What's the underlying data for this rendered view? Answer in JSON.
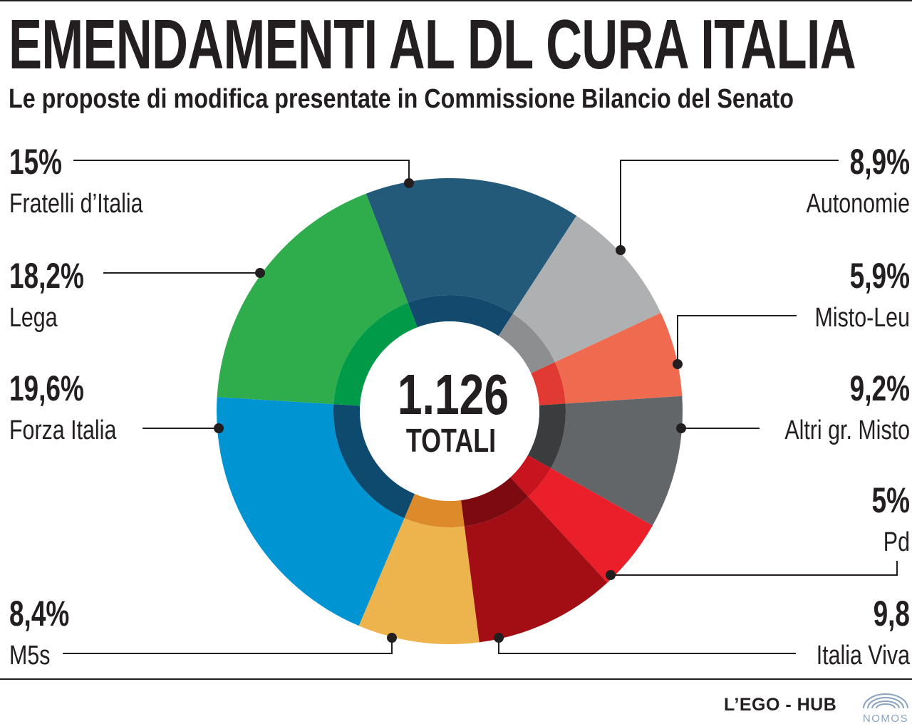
{
  "title": "EMENDAMENTI AL DL CURA ITALIA",
  "subtitle": "Le proposte di modifica presentate in Commissione Bilancio del Senato",
  "chart_data": {
    "type": "pie",
    "donut": true,
    "total": {
      "value": "1.126",
      "label": "TOTALI"
    },
    "slices": [
      {
        "name": "Fratelli d’Italia",
        "label": "15%",
        "value": 15,
        "color": "#235a7a",
        "inner_color": "#13496d"
      },
      {
        "name": "Autonomie",
        "label": "8,9%",
        "value": 8.9,
        "color": "#aeb0b2",
        "inner_color": "#8c8e90"
      },
      {
        "name": "Misto-Leu",
        "label": "5,9%",
        "value": 5.9,
        "color": "#ef6a4f",
        "inner_color": "#e03a32"
      },
      {
        "name": "Altri gr. Misto",
        "label": "9,2%",
        "value": 9.2,
        "color": "#636669",
        "inner_color": "#3a3c3e"
      },
      {
        "name": "Pd",
        "label": "5%",
        "value": 5,
        "color": "#ea1f2a",
        "inner_color": "#c8141f"
      },
      {
        "name": "Italia Viva",
        "label": "9,8",
        "value": 9.8,
        "color": "#a30e15",
        "inner_color": "#7d0a10"
      },
      {
        "name": "M5s",
        "label": "8,4%",
        "value": 8.4,
        "color": "#edb44e",
        "inner_color": "#dc8a2a"
      },
      {
        "name": "Forza Italia",
        "label": "19,6%",
        "value": 19.6,
        "color": "#0094d2",
        "inner_color": "#0d4a6e"
      },
      {
        "name": "Lega",
        "label": "18,2%",
        "value": 18.2,
        "color": "#2fac4b",
        "inner_color": "#009a48"
      }
    ]
  },
  "footer": {
    "credit": "L’EGO - HUB",
    "logo_text": "NOMOS"
  }
}
